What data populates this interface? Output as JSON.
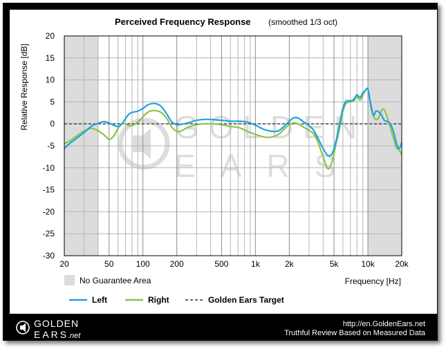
{
  "chart_data": {
    "type": "line",
    "title": "Perceived Frequency Response",
    "subtitle": "(smoothed 1/3 oct)",
    "ylabel": "Relative Response [dB]",
    "xlabel": "Frequency [Hz]",
    "xscale": "log",
    "xlim": [
      20,
      20000
    ],
    "ylim": [
      -30,
      20
    ],
    "yticks": [
      20,
      15,
      10,
      5,
      0,
      -5,
      -10,
      -15,
      -20,
      -25,
      -30
    ],
    "xticks": [
      {
        "value": 20,
        "label": "20"
      },
      {
        "value": 50,
        "label": "50"
      },
      {
        "value": 100,
        "label": "100"
      },
      {
        "value": 200,
        "label": "200"
      },
      {
        "value": 500,
        "label": "500"
      },
      {
        "value": 1000,
        "label": "1k"
      },
      {
        "value": 2000,
        "label": "2k"
      },
      {
        "value": 5000,
        "label": "5k"
      },
      {
        "value": 10000,
        "label": "10k"
      },
      {
        "value": 20000,
        "label": "20k"
      }
    ],
    "shaded_ranges": [
      [
        20,
        40
      ],
      [
        10000,
        20000
      ]
    ],
    "shaded_label": "No Guarantee Area",
    "series": [
      {
        "name": "Left",
        "color": "#1ba3e0",
        "points": [
          [
            20,
            -5.6
          ],
          [
            22,
            -4.6
          ],
          [
            25,
            -3.5
          ],
          [
            30,
            -2.0
          ],
          [
            35,
            -0.5
          ],
          [
            40,
            0.1
          ],
          [
            45,
            0.5
          ],
          [
            50,
            0.2
          ],
          [
            55,
            -0.3
          ],
          [
            60,
            -0.6
          ],
          [
            65,
            0.0
          ],
          [
            70,
            1.2
          ],
          [
            75,
            2.2
          ],
          [
            80,
            2.6
          ],
          [
            90,
            2.9
          ],
          [
            100,
            3.5
          ],
          [
            110,
            4.3
          ],
          [
            120,
            4.6
          ],
          [
            130,
            4.6
          ],
          [
            140,
            4.3
          ],
          [
            150,
            3.6
          ],
          [
            165,
            2.0
          ],
          [
            180,
            0.5
          ],
          [
            200,
            -0.2
          ],
          [
            220,
            -0.1
          ],
          [
            250,
            0.2
          ],
          [
            300,
            0.8
          ],
          [
            350,
            1.0
          ],
          [
            400,
            1.0
          ],
          [
            500,
            0.8
          ],
          [
            600,
            0.6
          ],
          [
            700,
            0.6
          ],
          [
            800,
            0.5
          ],
          [
            900,
            0.2
          ],
          [
            1000,
            -0.3
          ],
          [
            1200,
            -1.3
          ],
          [
            1400,
            -1.7
          ],
          [
            1600,
            -1.6
          ],
          [
            1800,
            -0.6
          ],
          [
            2000,
            0.6
          ],
          [
            2200,
            1.4
          ],
          [
            2400,
            1.3
          ],
          [
            2700,
            0.4
          ],
          [
            3000,
            -0.4
          ],
          [
            3300,
            -1.5
          ],
          [
            3600,
            -3.3
          ],
          [
            4000,
            -5.6
          ],
          [
            4400,
            -7.2
          ],
          [
            4800,
            -6.8
          ],
          [
            5200,
            -4.0
          ],
          [
            5600,
            0.0
          ],
          [
            6000,
            3.5
          ],
          [
            6400,
            5.2
          ],
          [
            7000,
            5.2
          ],
          [
            7500,
            5.6
          ],
          [
            8000,
            6.6
          ],
          [
            8500,
            6.0
          ],
          [
            9000,
            7.0
          ],
          [
            9500,
            7.6
          ],
          [
            10000,
            7.9
          ],
          [
            10600,
            4.5
          ],
          [
            11200,
            2.0
          ],
          [
            11800,
            2.9
          ],
          [
            12500,
            2.7
          ],
          [
            13200,
            2.0
          ],
          [
            14000,
            0.8
          ],
          [
            15000,
            0.5
          ],
          [
            16000,
            -0.2
          ],
          [
            17000,
            -2.0
          ],
          [
            18000,
            -4.5
          ],
          [
            19000,
            -5.6
          ],
          [
            20000,
            -4.3
          ]
        ]
      },
      {
        "name": "Right",
        "color": "#8bc34a",
        "points": [
          [
            20,
            -4.5
          ],
          [
            22,
            -4.0
          ],
          [
            25,
            -3.0
          ],
          [
            30,
            -1.6
          ],
          [
            35,
            -1.0
          ],
          [
            40,
            -1.6
          ],
          [
            45,
            -2.5
          ],
          [
            50,
            -3.5
          ],
          [
            55,
            -2.8
          ],
          [
            60,
            -1.0
          ],
          [
            65,
            0.0
          ],
          [
            70,
            0.0
          ],
          [
            75,
            -0.4
          ],
          [
            80,
            -0.4
          ],
          [
            90,
            0.4
          ],
          [
            100,
            1.6
          ],
          [
            110,
            2.6
          ],
          [
            120,
            3.0
          ],
          [
            130,
            3.0
          ],
          [
            140,
            2.8
          ],
          [
            150,
            2.3
          ],
          [
            165,
            1.0
          ],
          [
            180,
            -0.7
          ],
          [
            200,
            -1.7
          ],
          [
            220,
            -1.6
          ],
          [
            250,
            -0.8
          ],
          [
            300,
            -0.2
          ],
          [
            350,
            0.0
          ],
          [
            400,
            0.0
          ],
          [
            500,
            -0.2
          ],
          [
            600,
            -0.6
          ],
          [
            700,
            -0.8
          ],
          [
            800,
            -1.4
          ],
          [
            900,
            -2.0
          ],
          [
            1000,
            -2.4
          ],
          [
            1200,
            -3.0
          ],
          [
            1400,
            -3.0
          ],
          [
            1600,
            -2.4
          ],
          [
            1800,
            -1.2
          ],
          [
            2000,
            -0.2
          ],
          [
            2200,
            0.2
          ],
          [
            2400,
            0.0
          ],
          [
            2700,
            -0.8
          ],
          [
            3000,
            -1.5
          ],
          [
            3300,
            -2.3
          ],
          [
            3600,
            -4.2
          ],
          [
            4000,
            -7.5
          ],
          [
            4400,
            -10.2
          ],
          [
            4800,
            -8.7
          ],
          [
            5200,
            -4.6
          ],
          [
            5600,
            -1.0
          ],
          [
            6000,
            2.8
          ],
          [
            6400,
            4.6
          ],
          [
            7000,
            5.0
          ],
          [
            7500,
            5.2
          ],
          [
            8000,
            6.2
          ],
          [
            8500,
            5.4
          ],
          [
            9000,
            6.4
          ],
          [
            9500,
            7.6
          ],
          [
            10000,
            7.8
          ],
          [
            10600,
            4.0
          ],
          [
            11200,
            1.8
          ],
          [
            11800,
            1.0
          ],
          [
            12500,
            1.4
          ],
          [
            13200,
            3.0
          ],
          [
            14000,
            3.2
          ],
          [
            15000,
            1.2
          ],
          [
            16000,
            -1.2
          ],
          [
            17000,
            -3.5
          ],
          [
            18000,
            -5.5
          ],
          [
            19000,
            -6.0
          ],
          [
            20000,
            -7.0
          ]
        ]
      },
      {
        "name": "Golden Ears Target",
        "color": "#333333",
        "dashed": true,
        "points": [
          [
            20,
            0
          ],
          [
            20000,
            0
          ]
        ]
      }
    ]
  },
  "watermark": {
    "line1": "GOLDEN",
    "line2": "EARS"
  },
  "footer": {
    "logo_line1": "GOLDEN",
    "logo_line2": "EARS",
    "logo_suffix": ".net",
    "url": "http://en.GoldenEars.net",
    "tagline": "Truthful Review Based on Measured Data"
  }
}
